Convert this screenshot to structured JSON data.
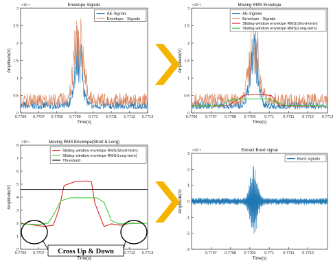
{
  "colors": {
    "ae_blue": "#1f77b4",
    "envelope_orange": "#d9825b",
    "short_red": "#d62728",
    "long_green": "#3ecf3e",
    "threshold": "#1a1a1a",
    "arrow": "#f5b400"
  },
  "annotation": {
    "text": "Cross Up & Down"
  },
  "chart_data": [
    {
      "id": "p1",
      "type": "line",
      "title": "Envelope Signals",
      "xlabel": "Time(s)",
      "ylabel": "Amplitude(V)",
      "exponent": "×10⁻³",
      "xlim": [
        0.7706,
        0.7713
      ],
      "ylim": [
        0,
        3
      ],
      "xticks": [
        "0.7706",
        "0.7707",
        "0.7708",
        "0.7709",
        "0.771",
        "0.7711",
        "0.7712",
        "0.7713"
      ],
      "yticks": [
        "0",
        "0.5",
        "1",
        "1.5",
        "2",
        "2.5",
        "3"
      ],
      "legend_position": "top-right",
      "series": [
        {
          "name": "AE-Signals",
          "color_key": "ae_blue",
          "style": "noise",
          "base": 0.12,
          "noise": 0.22,
          "burst_center": 0.77092,
          "burst_peak": 2.3,
          "burst_width": 3e-05
        },
        {
          "name": "Envelope - Signals",
          "color_key": "envelope_orange",
          "style": "noise",
          "base": 0.22,
          "noise": 0.35,
          "burst_center": 0.77092,
          "burst_peak": 2.8,
          "burst_width": 3.5e-05
        }
      ]
    },
    {
      "id": "p2",
      "type": "line",
      "title": "Moving RMS Envelope",
      "xlabel": "Time(s)",
      "ylabel": "Amplitude(V)",
      "exponent": "×10⁻³",
      "xlim": [
        0.7706,
        0.7713
      ],
      "ylim": [
        0,
        3
      ],
      "xticks": [
        "0.7706",
        "0.7707",
        "0.7708",
        "0.7709",
        "0.771",
        "0.7711",
        "0.7712",
        "0.7713"
      ],
      "yticks": [
        "0",
        "0.5",
        "1",
        "1.5",
        "2",
        "2.5",
        "3"
      ],
      "legend_position": "top-right",
      "series": [
        {
          "name": "AE-Signals",
          "color_key": "ae_blue",
          "style": "noise",
          "base": 0.12,
          "noise": 0.22,
          "burst_center": 0.77092,
          "burst_peak": 2.3,
          "burst_width": 3e-05
        },
        {
          "name": "Envelope - Signals",
          "color_key": "envelope_orange",
          "style": "noise",
          "base": 0.22,
          "noise": 0.35,
          "burst_center": 0.77092,
          "burst_peak": 2.8,
          "burst_width": 3.5e-05
        },
        {
          "name": "Sliding-window envelope RMS(Short-term)",
          "color_key": "short_red",
          "style": "line",
          "x": [
            0.7706,
            0.77075,
            0.77079,
            0.77084,
            0.77088,
            0.77096,
            0.77101,
            0.77105,
            0.7711,
            0.7713
          ],
          "y": [
            0.2,
            0.2,
            0.22,
            0.4,
            0.52,
            0.53,
            0.5,
            0.22,
            0.2,
            0.2
          ]
        },
        {
          "name": "Sliding-window envelope RMS(Long-term)",
          "color_key": "long_green",
          "style": "line",
          "x": [
            0.7706,
            0.7707,
            0.77076,
            0.77079,
            0.77086,
            0.771,
            0.77104,
            0.77108,
            0.7713
          ],
          "y": [
            0.2,
            0.2,
            0.22,
            0.36,
            0.4,
            0.4,
            0.3,
            0.22,
            0.2
          ]
        }
      ]
    },
    {
      "id": "p3",
      "type": "line",
      "title": "Moving RMS Envelope(Short & Long)",
      "xlabel": "Time(s)",
      "ylabel": "Amplitude(V)",
      "exponent": "×10⁻⁴",
      "xlim": [
        0.7706,
        0.7713
      ],
      "ylim": [
        0,
        8
      ],
      "xticks": [
        "0.7706",
        "0.7707",
        "0.7708",
        "0.7709",
        "0.771",
        "0.7711",
        "0.7712",
        "0.7713"
      ],
      "yticks": [
        "0",
        "1",
        "2",
        "3",
        "4",
        "5",
        "6",
        "7",
        "8"
      ],
      "legend_position": "top-right",
      "series": [
        {
          "name": "Sliding-window envelope RMS(Short-term)",
          "color_key": "short_red",
          "style": "line",
          "x": [
            0.7706,
            0.77068,
            0.77073,
            0.77078,
            0.77081,
            0.77084,
            0.7709,
            0.77096,
            0.77099,
            0.77101,
            0.77106,
            0.7711,
            0.77115,
            0.77121,
            0.7713
          ],
          "y": [
            2.0,
            1.85,
            1.75,
            1.85,
            3.0,
            4.9,
            5.2,
            5.25,
            5.2,
            3.5,
            1.75,
            1.95,
            1.85,
            2.0,
            2.0
          ]
        },
        {
          "name": "Sliding-window envelope RMS(Long-term)",
          "color_key": "long_green",
          "style": "line",
          "x": [
            0.7706,
            0.7707,
            0.77075,
            0.77078,
            0.77082,
            0.77087,
            0.77102,
            0.77106,
            0.7711,
            0.77114,
            0.7713
          ],
          "y": [
            1.95,
            1.9,
            2.0,
            2.6,
            3.7,
            3.95,
            3.95,
            3.6,
            2.2,
            1.95,
            2.0
          ]
        },
        {
          "name": "Threshold",
          "color_key": "threshold",
          "style": "line",
          "x": [
            0.7706,
            0.7713
          ],
          "y": [
            4.6,
            4.6
          ]
        }
      ]
    },
    {
      "id": "p4",
      "type": "line",
      "title": "Extract Busrt signal",
      "xlabel": "Time(s)",
      "ylabel": "Amplitude(V)",
      "exponent": "×10⁻³",
      "xlim": [
        0.7706,
        0.7713
      ],
      "ylim": [
        -3,
        3
      ],
      "xticks": [
        "0.7707",
        "0.7708",
        "0.7709",
        "0.771",
        "0.7711",
        "0.7712"
      ],
      "xtick_values": [
        0.7707,
        0.7708,
        0.7709,
        0.771,
        0.7711,
        0.7712
      ],
      "yticks": [
        "-3",
        "-2",
        "-1",
        "0",
        "1",
        "2",
        "3"
      ],
      "legend_position": "top-right",
      "series": [
        {
          "name": "Burst signals",
          "color_key": "ae_blue",
          "style": "osc",
          "base": 0.0,
          "noise": 0.22,
          "burst_center": 0.77092,
          "burst_peak": 2.2,
          "burst_width": 2.5e-05
        }
      ]
    }
  ]
}
